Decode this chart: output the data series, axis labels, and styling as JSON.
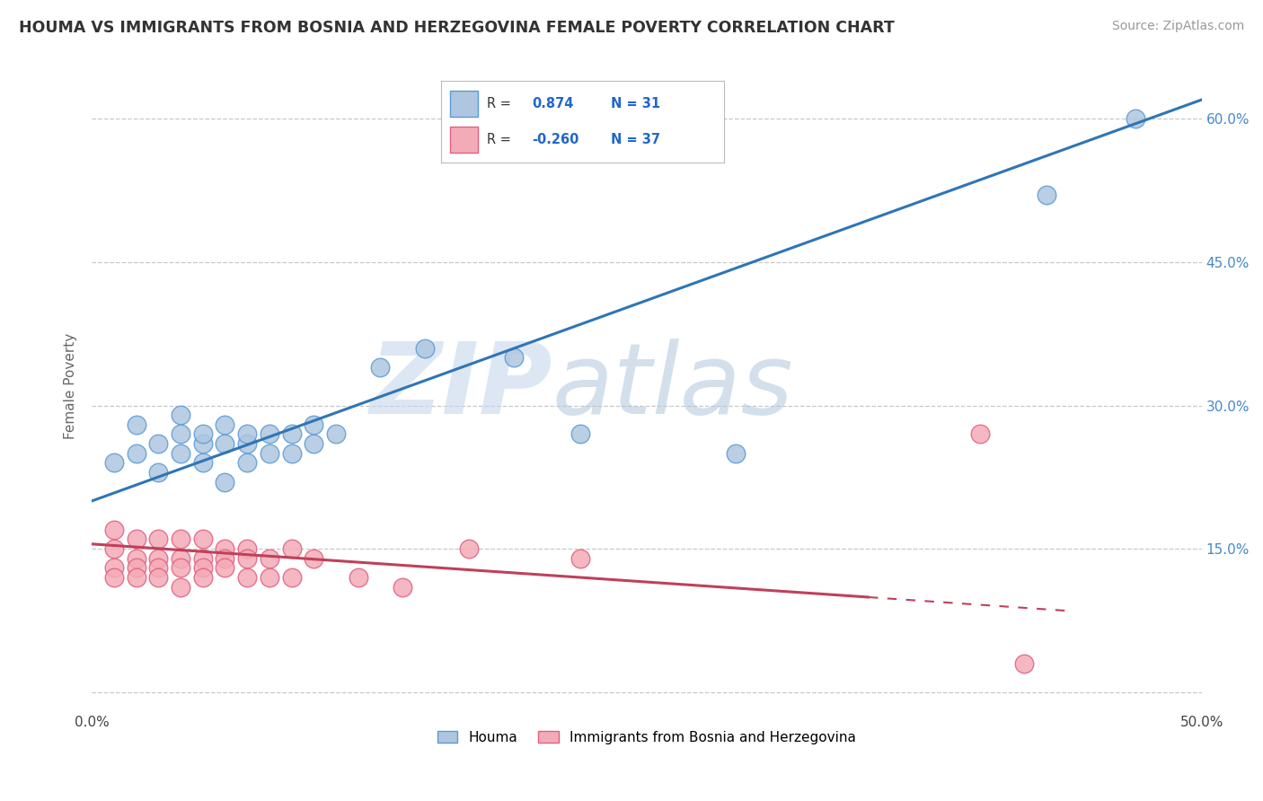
{
  "title": "HOUMA VS IMMIGRANTS FROM BOSNIA AND HERZEGOVINA FEMALE POVERTY CORRELATION CHART",
  "source": "Source: ZipAtlas.com",
  "ylabel": "Female Poverty",
  "xlim": [
    0.0,
    0.5
  ],
  "ylim": [
    -0.02,
    0.66
  ],
  "yticks": [
    0.0,
    0.15,
    0.3,
    0.45,
    0.6
  ],
  "xticks": [
    0.0,
    0.1,
    0.2,
    0.3,
    0.4,
    0.5
  ],
  "xtick_labels": [
    "0.0%",
    "",
    "",
    "",
    "",
    "50.0%"
  ],
  "ytick_labels": [
    "",
    "15.0%",
    "30.0%",
    "45.0%",
    "60.0%"
  ],
  "houma_R": 0.874,
  "houma_N": 31,
  "bosnia_R": -0.26,
  "bosnia_N": 37,
  "houma_color": "#aec6e0",
  "houma_edge_color": "#5b9bd5",
  "houma_line_color": "#2f75b6",
  "bosnia_color": "#f4abb8",
  "bosnia_edge_color": "#e06080",
  "bosnia_line_color": "#c0405a",
  "houma_scatter_x": [
    0.01,
    0.02,
    0.02,
    0.03,
    0.03,
    0.04,
    0.04,
    0.04,
    0.05,
    0.05,
    0.05,
    0.06,
    0.06,
    0.06,
    0.07,
    0.07,
    0.07,
    0.08,
    0.08,
    0.09,
    0.09,
    0.1,
    0.1,
    0.11,
    0.13,
    0.15,
    0.19,
    0.22,
    0.29,
    0.43,
    0.47
  ],
  "houma_scatter_y": [
    0.24,
    0.25,
    0.28,
    0.23,
    0.26,
    0.25,
    0.27,
    0.29,
    0.24,
    0.26,
    0.27,
    0.22,
    0.26,
    0.28,
    0.24,
    0.26,
    0.27,
    0.25,
    0.27,
    0.25,
    0.27,
    0.26,
    0.28,
    0.27,
    0.34,
    0.36,
    0.35,
    0.27,
    0.25,
    0.52,
    0.6
  ],
  "bosnia_scatter_x": [
    0.01,
    0.01,
    0.01,
    0.01,
    0.02,
    0.02,
    0.02,
    0.02,
    0.03,
    0.03,
    0.03,
    0.03,
    0.04,
    0.04,
    0.04,
    0.04,
    0.05,
    0.05,
    0.05,
    0.05,
    0.06,
    0.06,
    0.06,
    0.07,
    0.07,
    0.07,
    0.08,
    0.08,
    0.09,
    0.09,
    0.1,
    0.12,
    0.14,
    0.17,
    0.22,
    0.4,
    0.42
  ],
  "bosnia_scatter_y": [
    0.17,
    0.15,
    0.13,
    0.12,
    0.16,
    0.14,
    0.13,
    0.12,
    0.16,
    0.14,
    0.13,
    0.12,
    0.16,
    0.14,
    0.13,
    0.11,
    0.16,
    0.14,
    0.13,
    0.12,
    0.15,
    0.14,
    0.13,
    0.15,
    0.14,
    0.12,
    0.14,
    0.12,
    0.15,
    0.12,
    0.14,
    0.12,
    0.11,
    0.15,
    0.14,
    0.27,
    0.03
  ],
  "houma_line_x": [
    0.0,
    0.5
  ],
  "houma_line_y": [
    0.2,
    0.62
  ],
  "bosnia_line_x": [
    0.0,
    0.44
  ],
  "bosnia_line_solid_end": 0.35,
  "bosnia_line_y": [
    0.155,
    0.085
  ],
  "watermark_zip": "ZIP",
  "watermark_atlas": "atlas",
  "background_color": "#ffffff",
  "grid_color": "#c8c8c8",
  "watermark_color": "#d0dce8",
  "watermark_color2": "#b8c8d8"
}
